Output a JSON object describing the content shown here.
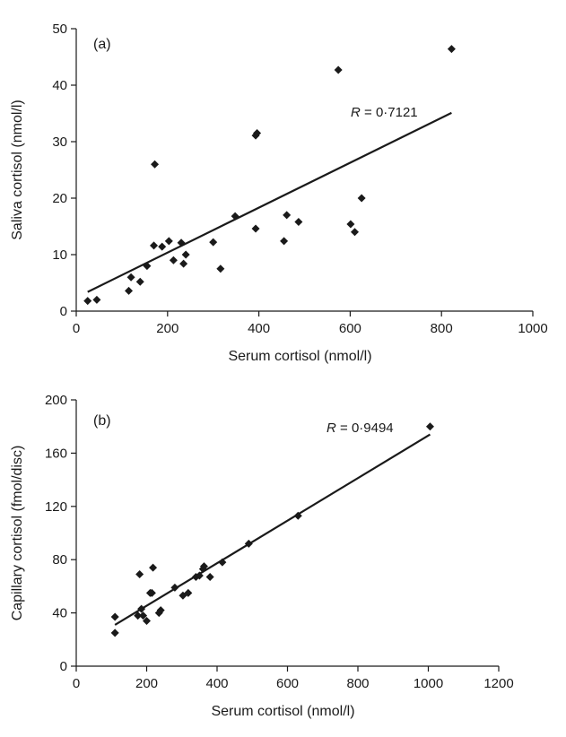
{
  "chart_data": [
    {
      "type": "scatter",
      "panel_label": "(a)",
      "xlabel": "Serum cortisol (nmol/l)",
      "ylabel": "Saliva cortisol (nmol/l)",
      "xlim": [
        0,
        1000
      ],
      "ylim": [
        0,
        50
      ],
      "x_ticks": [
        "0",
        "200",
        "400",
        "600",
        "800",
        "1000"
      ],
      "y_ticks": [
        "0",
        "10",
        "20",
        "30",
        "40",
        "50"
      ],
      "x_tick_values": [
        0,
        200,
        400,
        600,
        800,
        1000
      ],
      "y_tick_values": [
        0,
        10,
        20,
        30,
        40,
        50
      ],
      "correlation": {
        "symbol": "R",
        "text": " = 0·7121"
      },
      "trendline": {
        "x": [
          25,
          822
        ],
        "y": [
          3.4,
          35.1
        ]
      },
      "points": [
        [
          25,
          1.8
        ],
        [
          45,
          2.0
        ],
        [
          115,
          3.6
        ],
        [
          120,
          6.0
        ],
        [
          140,
          5.2
        ],
        [
          155,
          8.0
        ],
        [
          170,
          11.6
        ],
        [
          172,
          26.0
        ],
        [
          188,
          11.4
        ],
        [
          203,
          12.4
        ],
        [
          213,
          9.0
        ],
        [
          230,
          12.1
        ],
        [
          235,
          8.4
        ],
        [
          240,
          10.0
        ],
        [
          300,
          12.2
        ],
        [
          316,
          7.5
        ],
        [
          348,
          16.8
        ],
        [
          393,
          14.6
        ],
        [
          393,
          31.1
        ],
        [
          396,
          31.5
        ],
        [
          455,
          12.4
        ],
        [
          461,
          17.0
        ],
        [
          487,
          15.8
        ],
        [
          574,
          42.7
        ],
        [
          601,
          15.4
        ],
        [
          610,
          14.0
        ],
        [
          625,
          20.0
        ],
        [
          822,
          46.4
        ]
      ]
    },
    {
      "type": "scatter",
      "panel_label": "(b)",
      "xlabel": "Serum cortisol (nmol/l)",
      "ylabel": "Capillary cortisol (fmol/disc)",
      "xlim": [
        0,
        1200
      ],
      "ylim": [
        0,
        200
      ],
      "x_ticks": [
        "0",
        "200",
        "400",
        "600",
        "800",
        "1000",
        "1200"
      ],
      "y_ticks": [
        "0",
        "40",
        "80",
        "120",
        "160",
        "200"
      ],
      "x_tick_values": [
        0,
        200,
        400,
        600,
        800,
        1000,
        1200
      ],
      "y_tick_values": [
        0,
        40,
        80,
        120,
        160,
        200
      ],
      "correlation": {
        "symbol": "R",
        "text": " = 0·9494"
      },
      "trendline": {
        "x": [
          110,
          1005
        ],
        "y": [
          31,
          174
        ]
      },
      "points": [
        [
          110,
          25
        ],
        [
          110,
          37
        ],
        [
          175,
          38
        ],
        [
          180,
          69
        ],
        [
          185,
          43
        ],
        [
          190,
          38
        ],
        [
          200,
          34
        ],
        [
          210,
          55
        ],
        [
          215,
          55
        ],
        [
          218,
          74
        ],
        [
          235,
          40
        ],
        [
          240,
          42
        ],
        [
          280,
          59
        ],
        [
          303,
          53
        ],
        [
          318,
          55
        ],
        [
          340,
          67
        ],
        [
          350,
          68
        ],
        [
          360,
          73
        ],
        [
          363,
          75
        ],
        [
          380,
          67
        ],
        [
          415,
          78
        ],
        [
          490,
          92
        ],
        [
          630,
          113
        ],
        [
          1005,
          180
        ]
      ]
    }
  ]
}
